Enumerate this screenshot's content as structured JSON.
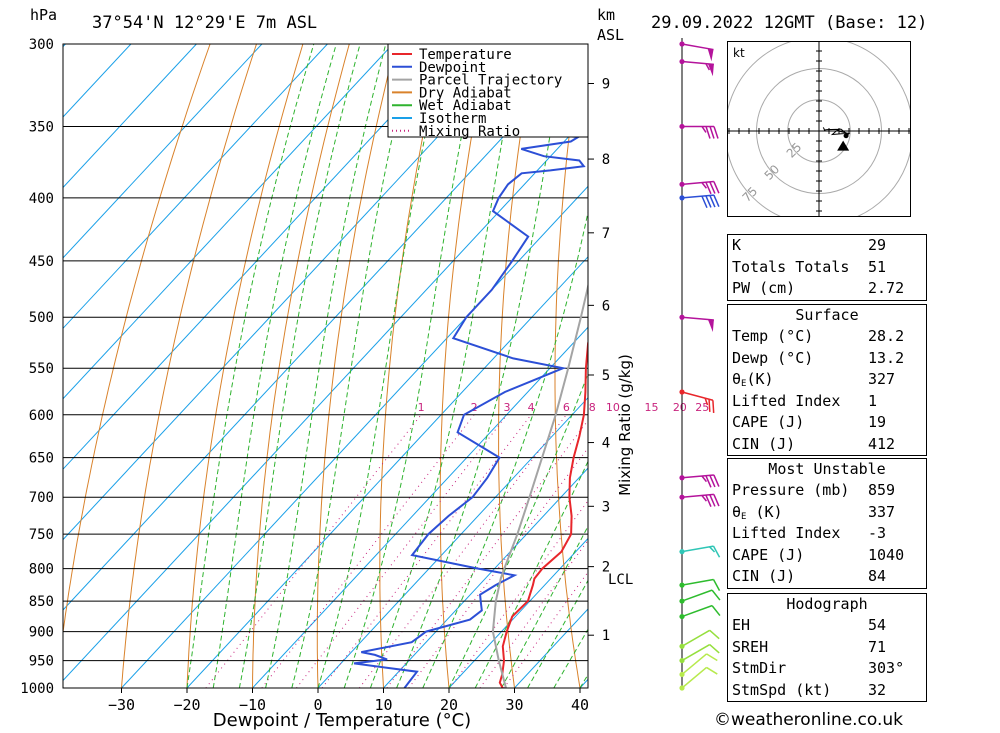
{
  "header": {
    "hpa_label": "hPa",
    "location": "37°54'N 12°29'E 7m ASL",
    "km_label": "km",
    "asl_label": "ASL",
    "datetime": "29.09.2022 12GMT (Base: 12)"
  },
  "chart_data": {
    "type": "line",
    "xlabel": "Dewpoint / Temperature (°C)",
    "y2label": "Mixing Ratio (g/kg)",
    "x_ticks": [
      -30,
      -20,
      -10,
      0,
      10,
      20,
      30,
      40
    ],
    "pressure_levels": [
      300,
      350,
      400,
      450,
      500,
      550,
      600,
      650,
      700,
      750,
      800,
      850,
      900,
      950,
      1000
    ],
    "km_ticks": [
      {
        "km": "1",
        "p": 906
      },
      {
        "km": "2",
        "p": 797
      },
      {
        "km": "3",
        "p": 712
      },
      {
        "km": "4",
        "p": 632
      },
      {
        "km": "5",
        "p": 557
      },
      {
        "km": "6",
        "p": 489
      },
      {
        "km": "7",
        "p": 427
      },
      {
        "km": "8",
        "p": 372
      },
      {
        "km": "9",
        "p": 323
      }
    ],
    "lcl_label": "LCL",
    "lcl_pressure": 814,
    "mixing_ratio_labels": [
      "1",
      "2",
      "3",
      "4",
      "6",
      "8",
      "10",
      "15",
      "20",
      "25"
    ],
    "legend": [
      "Temperature",
      "Dewpoint",
      "Parcel Trajectory",
      "Dry Adiabat",
      "Wet Adiabat",
      "Isotherm",
      "Mixing Ratio"
    ],
    "series": [
      {
        "name": "Temperature",
        "color": "#e8262b",
        "points": [
          [
            1000,
            28.2
          ],
          [
            990,
            27
          ],
          [
            975,
            26.2
          ],
          [
            950,
            24.5
          ],
          [
            925,
            22.3
          ],
          [
            900,
            20.8
          ],
          [
            875,
            19.5
          ],
          [
            850,
            19.7
          ],
          [
            825,
            18.2
          ],
          [
            815,
            17.5
          ],
          [
            800,
            17.3
          ],
          [
            775,
            17.8
          ],
          [
            750,
            16.8
          ],
          [
            725,
            14.3
          ],
          [
            700,
            11.3
          ],
          [
            675,
            8.6
          ],
          [
            650,
            6.3
          ],
          [
            625,
            4.2
          ],
          [
            600,
            1.8
          ],
          [
            575,
            -1.2
          ],
          [
            550,
            -4.5
          ],
          [
            525,
            -7.7
          ],
          [
            500,
            -10.4
          ],
          [
            475,
            -13.7
          ],
          [
            450,
            -17.2
          ],
          [
            425,
            -21
          ],
          [
            400,
            -25
          ],
          [
            375,
            -29
          ],
          [
            350,
            -33
          ],
          [
            325,
            -37.5
          ],
          [
            300,
            -42
          ]
        ]
      },
      {
        "name": "Dewpoint",
        "color": "#2c4fd6",
        "points": [
          [
            1000,
            13.2
          ],
          [
            985,
            13
          ],
          [
            970,
            12.8
          ],
          [
            955,
            2
          ],
          [
            948,
            6.5
          ],
          [
            940,
            4
          ],
          [
            935,
            1.5
          ],
          [
            918,
            7.8
          ],
          [
            900,
            8.5
          ],
          [
            880,
            13.5
          ],
          [
            865,
            14
          ],
          [
            850,
            12.5
          ],
          [
            840,
            11.5
          ],
          [
            825,
            12.5
          ],
          [
            810,
            14
          ],
          [
            800,
            7.5
          ],
          [
            780,
            -4.5
          ],
          [
            750,
            -5
          ],
          [
            725,
            -4.5
          ],
          [
            700,
            -3.5
          ],
          [
            675,
            -4
          ],
          [
            650,
            -5
          ],
          [
            620,
            -15
          ],
          [
            600,
            -16.5
          ],
          [
            575,
            -13.5
          ],
          [
            550,
            -8
          ],
          [
            540,
            -17
          ],
          [
            520,
            -29
          ],
          [
            500,
            -30
          ],
          [
            475,
            -30
          ],
          [
            450,
            -31
          ],
          [
            430,
            -32
          ],
          [
            410,
            -41
          ],
          [
            400,
            -42
          ],
          [
            390,
            -42.5
          ],
          [
            382,
            -42
          ],
          [
            380,
            -38
          ],
          [
            377,
            -33.5
          ],
          [
            373,
            -35
          ],
          [
            370,
            -41
          ],
          [
            365,
            -45.5
          ],
          [
            360,
            -39
          ],
          [
            357,
            -38.5
          ],
          [
            355,
            -45
          ],
          [
            350,
            -46
          ],
          [
            347,
            -48
          ],
          [
            345,
            -49
          ],
          [
            336,
            -42
          ],
          [
            322,
            -32
          ],
          [
            310,
            -34
          ],
          [
            300,
            -35
          ]
        ]
      },
      {
        "name": "Parcel Trajectory",
        "color": "#a4a4a4",
        "points": [
          [
            1000,
            28.7
          ],
          [
            950,
            23.7
          ],
          [
            900,
            18.7
          ],
          [
            850,
            14.8
          ],
          [
            814,
            12.3
          ],
          [
            800,
            11.5
          ],
          [
            750,
            8.6
          ],
          [
            700,
            5.2
          ],
          [
            650,
            1.5
          ],
          [
            600,
            -2.5
          ],
          [
            550,
            -7.2
          ],
          [
            500,
            -12.5
          ],
          [
            450,
            -18.5
          ],
          [
            400,
            -26
          ],
          [
            350,
            -34.5
          ],
          [
            300,
            -44
          ]
        ]
      }
    ],
    "wind_barbs": [
      {
        "p": 1000,
        "dir": 230,
        "speed": 10,
        "color": "#b7ea4d"
      },
      {
        "p": 975,
        "dir": 230,
        "speed": 10,
        "color": "#b7ea4d"
      },
      {
        "p": 950,
        "dir": 240,
        "speed": 10,
        "color": "#95df3d"
      },
      {
        "p": 925,
        "dir": 240,
        "speed": 10,
        "color": "#95df3d"
      },
      {
        "p": 875,
        "dir": 250,
        "speed": 10,
        "color": "#2ebc2e"
      },
      {
        "p": 850,
        "dir": 250,
        "speed": 10,
        "color": "#2ebc2e"
      },
      {
        "p": 825,
        "dir": 260,
        "speed": 10,
        "color": "#2ebc2e"
      },
      {
        "p": 775,
        "dir": 260,
        "speed": 15,
        "color": "#2fc6b6"
      },
      {
        "p": 700,
        "dir": 265,
        "speed": 35,
        "color": "#b4139b"
      },
      {
        "p": 675,
        "dir": 265,
        "speed": 35,
        "color": "#b4139b"
      },
      {
        "p": 575,
        "dir": 285,
        "speed": 25,
        "color": "#e8262b"
      },
      {
        "p": 500,
        "dir": 275,
        "speed": 50,
        "color": "#b4139b"
      },
      {
        "p": 400,
        "dir": 265,
        "speed": 40,
        "color": "#2c4fd6"
      },
      {
        "p": 390,
        "dir": 265,
        "speed": 35,
        "color": "#b4139b"
      },
      {
        "p": 350,
        "dir": 270,
        "speed": 35,
        "color": "#b4139b"
      },
      {
        "p": 310,
        "dir": 275,
        "speed": 55,
        "color": "#b4139b"
      },
      {
        "p": 300,
        "dir": 280,
        "speed": 50,
        "color": "#b4139b"
      }
    ]
  },
  "hodograph": {
    "unit": "kt",
    "ring_labels": [
      "25",
      "50",
      "75"
    ],
    "storm_motion": {
      "dir": 303,
      "speed": 32
    }
  },
  "indices": [
    {
      "label": "K",
      "value": "29"
    },
    {
      "label": "Totals Totals",
      "value": "51"
    },
    {
      "label": "PW (cm)",
      "value": "2.72"
    }
  ],
  "surface": {
    "title": "Surface",
    "rows": [
      {
        "label": "Temp (°C)",
        "value": "28.2"
      },
      {
        "label": "Dewp (°C)",
        "value": "13.2"
      },
      {
        "label": "θ",
        "sub": "E",
        "suffix": "(K)",
        "value": "327"
      },
      {
        "label": "Lifted Index",
        "value": "1"
      },
      {
        "label": "CAPE (J)",
        "value": "19"
      },
      {
        "label": "CIN (J)",
        "value": "412"
      }
    ]
  },
  "most_unstable": {
    "title": "Most Unstable",
    "rows": [
      {
        "label": "Pressure (mb)",
        "value": "859"
      },
      {
        "label": "θ",
        "sub": "E",
        "suffix": " (K)",
        "value": "337"
      },
      {
        "label": "Lifted Index",
        "value": "-3"
      },
      {
        "label": "CAPE (J)",
        "value": "1040"
      },
      {
        "label": "CIN (J)",
        "value": "84"
      }
    ]
  },
  "hodograph_table": {
    "title": "Hodograph",
    "rows": [
      {
        "label": "EH",
        "value": "54"
      },
      {
        "label": "SREH",
        "value": "71"
      },
      {
        "label": "StmDir",
        "value": "303°"
      },
      {
        "label": "StmSpd (kt)",
        "value": "32"
      }
    ]
  },
  "credit": "©weatheronline.co.uk"
}
